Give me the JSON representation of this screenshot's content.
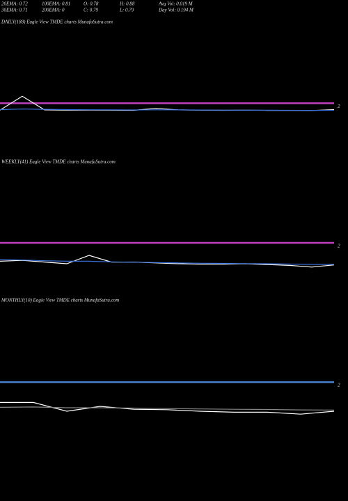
{
  "header": {
    "rows": [
      [
        "20EMA: 0.72",
        "100EMA: 0.81",
        "O: 0.78",
        "H: 0.88",
        "Avg Vol: 0.019 M"
      ],
      [
        "30EMA: 0.71",
        "200EMA: 0",
        "C: 0.79",
        "L: 0.79",
        "Day Vol: 0.194 M"
      ]
    ]
  },
  "chart_data": [
    {
      "type": "line",
      "title": "DAILY(188) Eagle  View  TMDE charts MunafaSutra.com",
      "categories": [
        null,
        null,
        null,
        null,
        null,
        null,
        null,
        null,
        null,
        null,
        null,
        null,
        null,
        null,
        null,
        null
      ],
      "series": [
        {
          "color": "#ffffff",
          "values": [
            0.8,
            3.2,
            0.85,
            0.8,
            0.82,
            0.8,
            0.78,
            1.1,
            0.85,
            0.8,
            0.78,
            0.8,
            0.77,
            0.76,
            0.75,
            0.9
          ]
        },
        {
          "color": "#3a6fd8",
          "values": [
            0.9,
            1.0,
            0.95,
            0.9,
            0.88,
            0.86,
            0.84,
            0.86,
            0.85,
            0.83,
            0.81,
            0.8,
            0.79,
            0.78,
            0.77,
            0.78
          ]
        }
      ],
      "ylim": [
        0,
        15
      ],
      "yticks": [
        2
      ],
      "grid": true,
      "grid_color": "#c040c0"
    },
    {
      "type": "line",
      "title": "WEEKLY(41) Eagle  View  TMDE charts MunafaSutra.com",
      "categories": [
        null,
        null,
        null,
        null,
        null,
        null,
        null,
        null,
        null,
        null,
        null,
        null,
        null,
        null,
        null,
        null
      ],
      "series": [
        {
          "color": "#ffffff",
          "values": [
            0.9,
            0.95,
            0.85,
            0.75,
            1.25,
            0.85,
            0.85,
            0.8,
            0.75,
            0.72,
            0.72,
            0.75,
            0.7,
            0.65,
            0.55,
            0.68
          ]
        },
        {
          "color": "#3a6fd8",
          "values": [
            1.0,
            0.97,
            0.93,
            0.9,
            0.9,
            0.86,
            0.84,
            0.82,
            0.8,
            0.78,
            0.77,
            0.76,
            0.75,
            0.73,
            0.71,
            0.71
          ]
        }
      ],
      "ylim": [
        0,
        6.5
      ],
      "yticks": [
        2
      ],
      "grid": true,
      "grid_color": "#c040c0"
    },
    {
      "type": "line",
      "title": "MONTHLY(10) Eagle  View  TMDE charts MunafaSutra.com",
      "categories": [
        null,
        null,
        null,
        null,
        null,
        null,
        null,
        null,
        null,
        null,
        null
      ],
      "series": [
        {
          "color": "#ffffff",
          "values": [
            0.95,
            0.95,
            0.5,
            0.75,
            0.6,
            0.58,
            0.5,
            0.45,
            0.45,
            0.35,
            0.5
          ]
        },
        {
          "color": "#888888",
          "values": [
            0.7,
            0.72,
            0.68,
            0.68,
            0.66,
            0.64,
            0.62,
            0.6,
            0.59,
            0.57,
            0.56
          ]
        }
      ],
      "ylim": [
        0,
        5.9
      ],
      "yticks": [
        2
      ],
      "grid": true,
      "grid_color": "#4a7fd0"
    }
  ]
}
